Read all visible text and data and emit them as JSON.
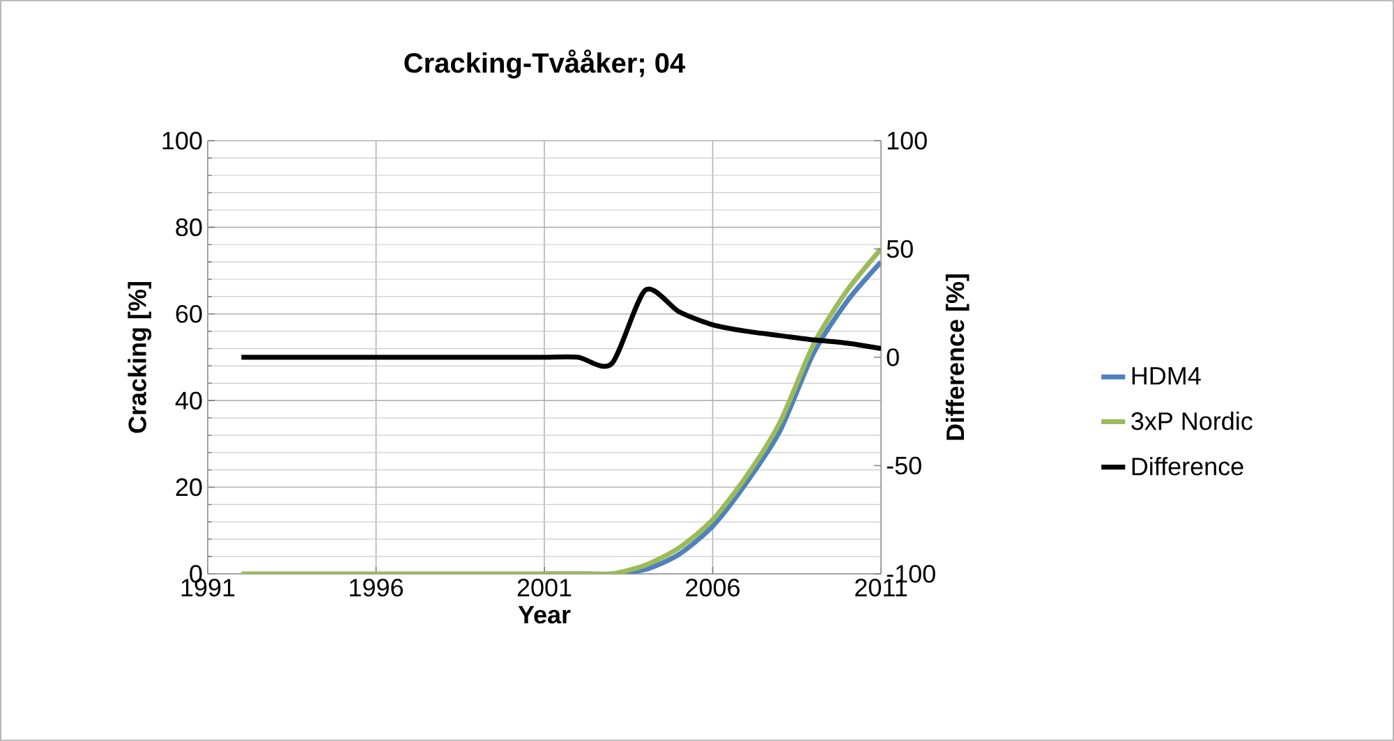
{
  "chart_data": {
    "type": "line",
    "title": "Cracking-Tvååker; 04",
    "xlabel": "Year",
    "ylabel": "Cracking [%]",
    "y2label": "Difference [%]",
    "x": [
      1992,
      1993,
      1994,
      1995,
      1996,
      1997,
      1998,
      1999,
      2000,
      2001,
      2002,
      2003,
      2004,
      2005,
      2006,
      2007,
      2008,
      2009,
      2010,
      2011
    ],
    "series": [
      {
        "name": "HDM4",
        "color": "#4f81bd",
        "values": [
          null,
          null,
          null,
          null,
          null,
          null,
          null,
          null,
          null,
          0,
          0,
          0,
          1,
          4.5,
          11,
          21,
          33,
          51,
          63,
          72
        ]
      },
      {
        "name": "3xP Nordic",
        "color": "#9bbb59",
        "values": [
          0,
          0,
          0,
          0,
          0,
          0,
          0,
          0,
          0,
          0,
          0,
          0,
          2,
          6,
          12.5,
          22.5,
          35,
          53,
          65.5,
          75
        ]
      },
      {
        "name": "Difference",
        "color": "#000000",
        "axis": "y2",
        "values": [
          0,
          0,
          0,
          0,
          0,
          0,
          0,
          0,
          0,
          0,
          0,
          -3,
          31,
          21,
          15,
          12,
          10,
          8,
          6.5,
          4
        ]
      }
    ],
    "xlim": [
      1991,
      2011
    ],
    "xticks": [
      1991,
      1996,
      2001,
      2006,
      2011
    ],
    "ylim": [
      0,
      100
    ],
    "yticks": [
      0,
      20,
      40,
      60,
      80,
      100
    ],
    "y2lim": [
      -100,
      100
    ],
    "y2ticks": [
      -100,
      -50,
      0,
      50,
      100
    ],
    "grid": true,
    "legend": "right",
    "line_style": "solid"
  }
}
